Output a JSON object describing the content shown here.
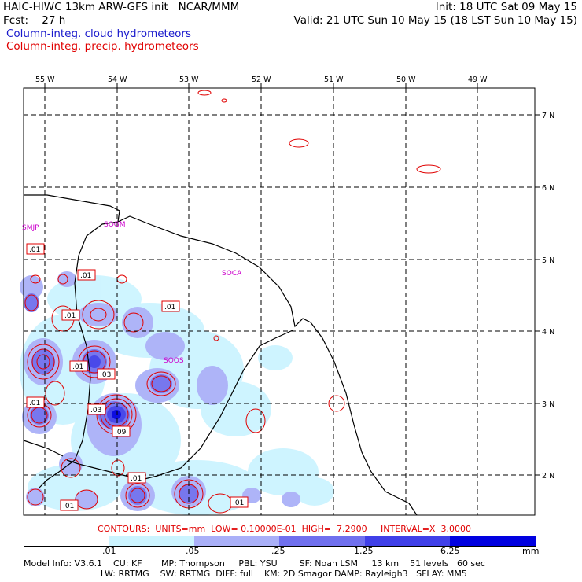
{
  "header": {
    "line1_left": "HAIC-HIWC 13km ARW-GFS init   NCAR/MMM",
    "line1_right": "Init: 18 UTC Sat 09 May 15",
    "line2_left": "Fcst:    27 h",
    "line2_right": "Valid: 21 UTC Sun 10 May 15 (18 LST Sun 10 May 15)",
    "legend_blue": "Column-integ. cloud hydrometeors",
    "legend_red": "Column-integ. precip. hydrometeors"
  },
  "lon_labels": [
    "55 W",
    "54 W",
    "53 W",
    "52 W",
    "51 W",
    "50 W",
    "49 W"
  ],
  "lat_labels": [
    "7 N",
    "6 N",
    "5 N",
    "4 N",
    "3 N",
    "2 N"
  ],
  "stations": [
    "SMJP",
    "SOGM",
    "SOCA",
    "SOOS"
  ],
  "contour_labels": [
    ".01",
    ".01",
    ".01",
    ".01",
    ".01",
    ".03",
    ".01",
    ".03",
    ".09",
    ".01",
    ".01",
    ".01"
  ],
  "contours_line": "CONTOURS:  UNITS=mm  LOW= 0.10000E-01  HIGH=  7.2900     INTERVAL=X  3.0000",
  "colorbar": {
    "ticks": [
      ".01",
      ".05",
      ".25",
      "1.25",
      "6.25"
    ],
    "units": "mm",
    "colors": [
      "#ffffff",
      "#ccf4ff",
      "#aab0f8",
      "#7070ee",
      "#4040e8",
      "#0000e0"
    ]
  },
  "model_info": {
    "line1": "Model Info: V3.6.1    CU: KF       MP: Thompson     PBL: YSU        SF: Noah LSM     13 km    51 levels   60 sec",
    "line2": "                            LW: RRTMG    SW: RRTMG  DIFF: full    KM: 2D Smagor DAMP: Rayleigh3   SFLAY: MM5"
  }
}
